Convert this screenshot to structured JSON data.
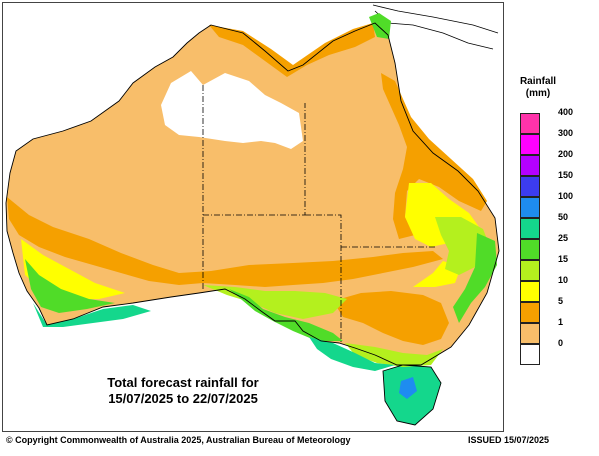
{
  "map": {
    "caption_line1": "Total forecast rainfall for",
    "caption_line2": "15/07/2025 to 22/07/2025"
  },
  "legend": {
    "title_line1": "Rainfall",
    "title_line2": "(mm)",
    "bins": [
      {
        "label": "400",
        "color": "#ff33aa"
      },
      {
        "label": "300",
        "color": "#ff00ff"
      },
      {
        "label": "200",
        "color": "#b400ff"
      },
      {
        "label": "150",
        "color": "#3c3cf0"
      },
      {
        "label": "100",
        "color": "#1e8cf0"
      },
      {
        "label": "50",
        "color": "#14d78c"
      },
      {
        "label": "25",
        "color": "#50dc28"
      },
      {
        "label": "15",
        "color": "#b4f01e"
      },
      {
        "label": "10",
        "color": "#ffff00"
      },
      {
        "label": "5",
        "color": "#f5a000"
      },
      {
        "label": "1",
        "color": "#f8be6a"
      },
      {
        "label": "0",
        "color": "#ffffff"
      }
    ]
  },
  "footer": {
    "copyright": "© Copyright Commonwealth of Australia 2025, Australian Bureau of Meteorology",
    "issued": "ISSUED 15/07/2025"
  }
}
